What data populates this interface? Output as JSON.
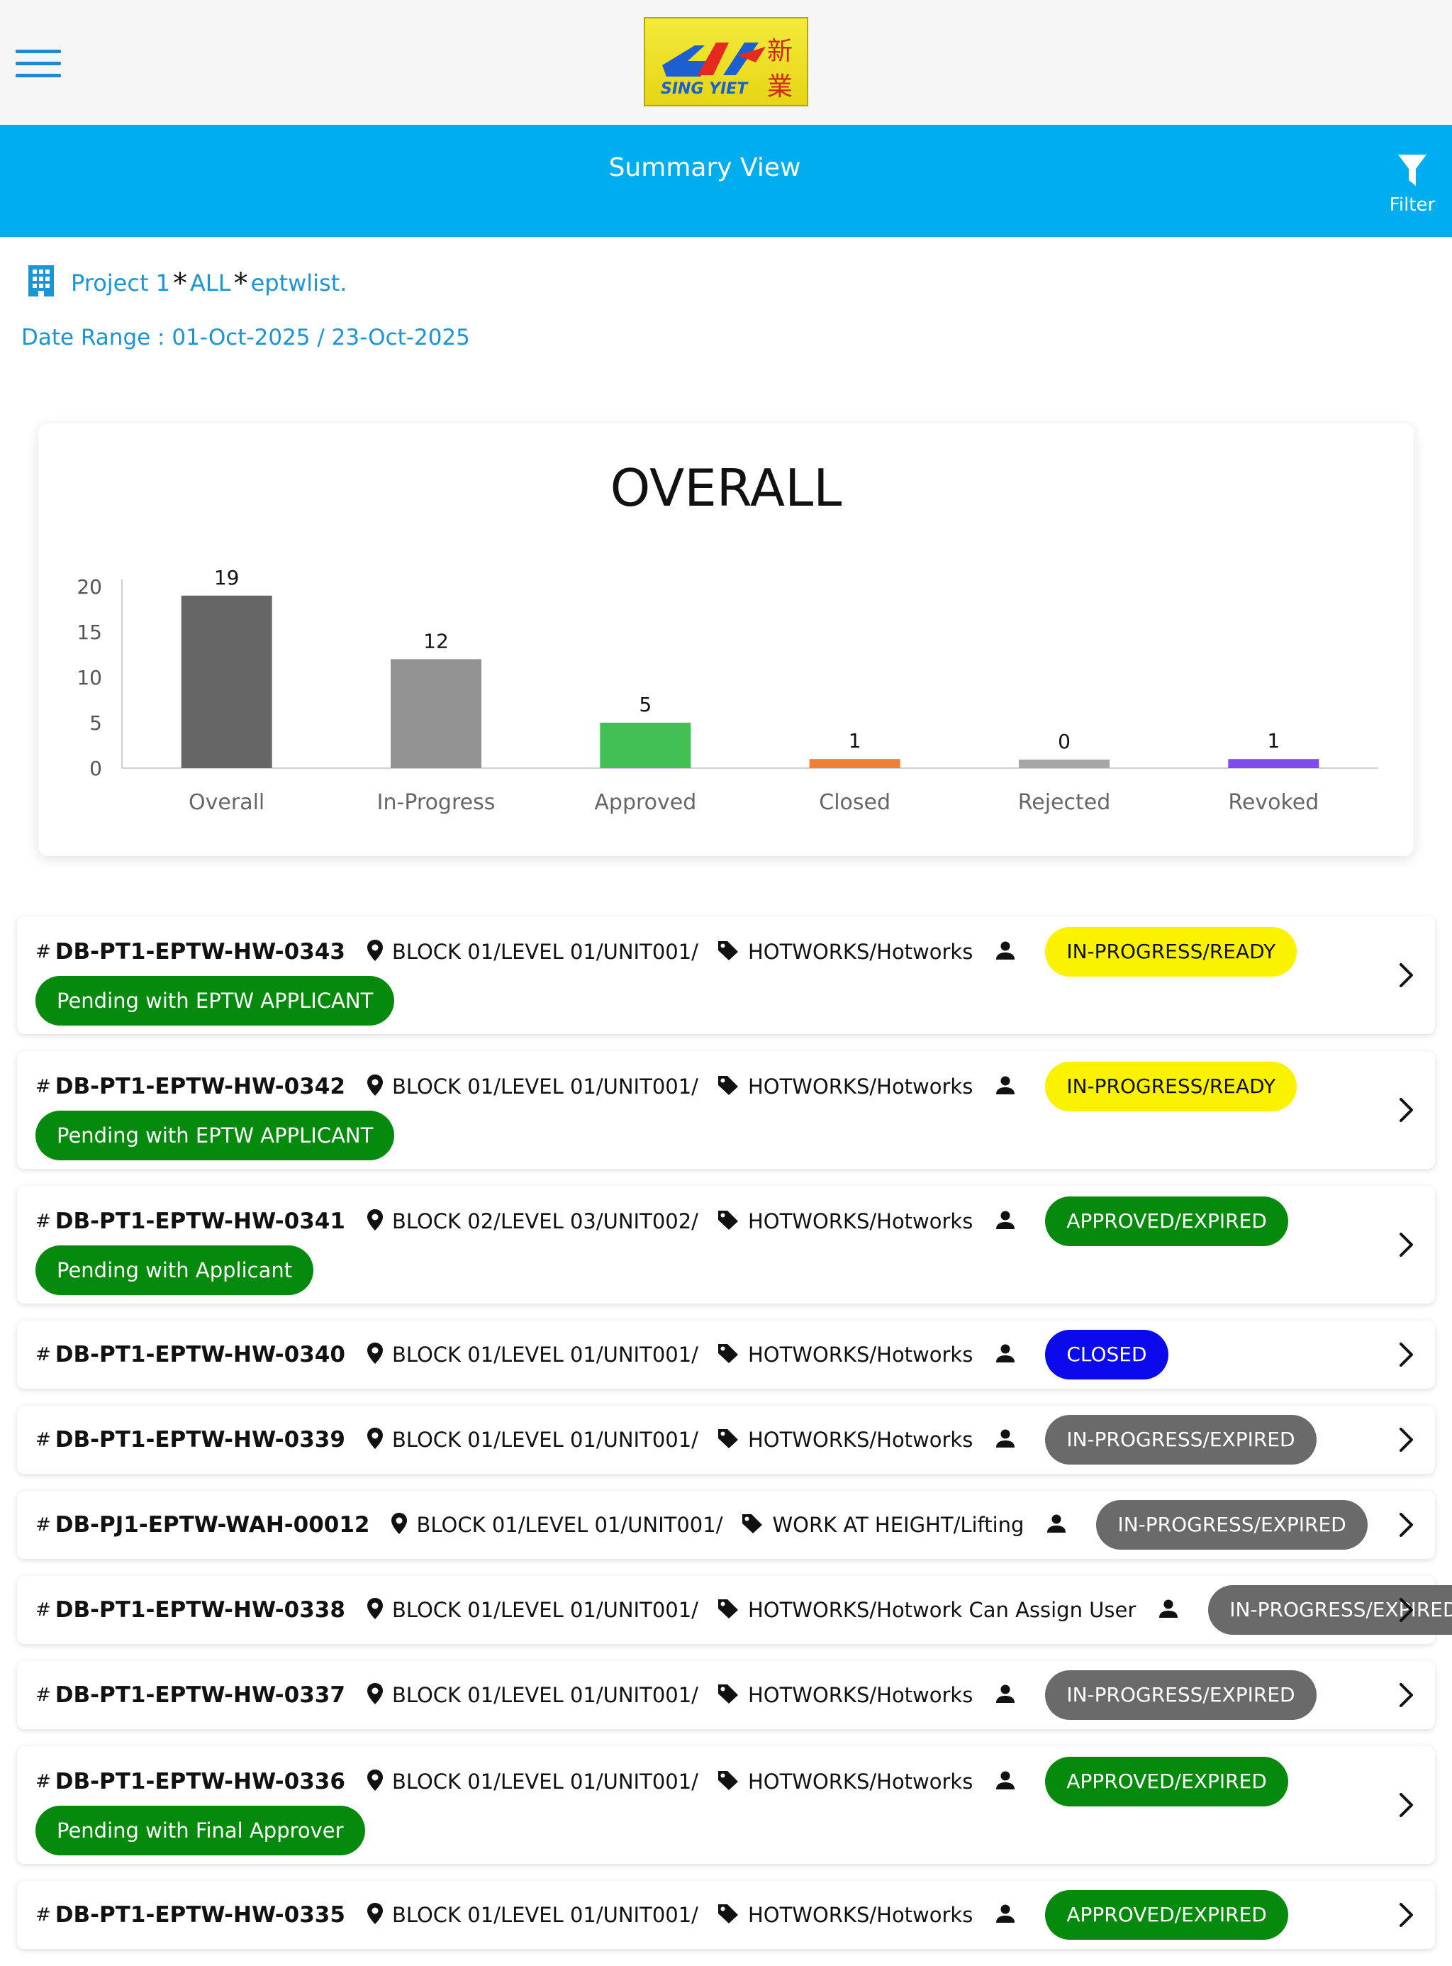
{
  "header": {
    "title": "Summary View",
    "filter_label": "Filter",
    "logo_text": "SING YIET",
    "logo_chinese": "新業"
  },
  "project": {
    "name": "Project 1",
    "scope": "ALL",
    "list": "eptwlist."
  },
  "date_range": {
    "label": "Date Range :",
    "value": "01-Oct-2025 / 23-Oct-2025"
  },
  "chart_data": {
    "type": "bar",
    "title": "OVERALL",
    "categories": [
      "Overall",
      "In-Progress",
      "Approved",
      "Closed",
      "Rejected",
      "Revoked"
    ],
    "values": [
      19,
      12,
      5,
      1,
      0,
      1
    ],
    "colors": [
      "#666666",
      "#939393",
      "#42c054",
      "#f07f34",
      "#a6a6a6",
      "#7e4cf1"
    ],
    "ylim": [
      0,
      20
    ],
    "yticks": [
      0,
      5,
      10,
      15,
      20
    ],
    "grid": false,
    "legend": "none"
  },
  "status_colors": {
    "IN-PROGRESS/READY": {
      "bg": "#fbf200",
      "fg": "#111111"
    },
    "APPROVED/EXPIRED": {
      "bg": "#068a0d",
      "fg": "#ffffff"
    },
    "CLOSED": {
      "bg": "#0a0aea",
      "fg": "#ffffff"
    },
    "IN-PROGRESS/EXPIRED": {
      "bg": "#6a6a6a",
      "fg": "#ffffff"
    }
  },
  "permits": [
    {
      "id": "DB-PT1-EPTW-HW-0343",
      "location": "BLOCK 01/LEVEL 01/UNIT001/",
      "category": "HOTWORKS/Hotworks",
      "status": "IN-PROGRESS/READY",
      "pending": "Pending with EPTW APPLICANT"
    },
    {
      "id": "DB-PT1-EPTW-HW-0342",
      "location": "BLOCK 01/LEVEL 01/UNIT001/",
      "category": "HOTWORKS/Hotworks",
      "status": "IN-PROGRESS/READY",
      "pending": "Pending with EPTW APPLICANT"
    },
    {
      "id": "DB-PT1-EPTW-HW-0341",
      "location": "BLOCK 02/LEVEL 03/UNIT002/",
      "category": "HOTWORKS/Hotworks",
      "status": "APPROVED/EXPIRED",
      "pending": "Pending with Applicant"
    },
    {
      "id": "DB-PT1-EPTW-HW-0340",
      "location": "BLOCK 01/LEVEL 01/UNIT001/",
      "category": "HOTWORKS/Hotworks",
      "status": "CLOSED",
      "pending": ""
    },
    {
      "id": "DB-PT1-EPTW-HW-0339",
      "location": "BLOCK 01/LEVEL 01/UNIT001/",
      "category": "HOTWORKS/Hotworks",
      "status": "IN-PROGRESS/EXPIRED",
      "pending": ""
    },
    {
      "id": "DB-PJ1-EPTW-WAH-00012",
      "location": "BLOCK 01/LEVEL 01/UNIT001/",
      "category": "WORK AT HEIGHT/Lifting",
      "status": "IN-PROGRESS/EXPIRED",
      "pending": ""
    },
    {
      "id": "DB-PT1-EPTW-HW-0338",
      "location": "BLOCK 01/LEVEL 01/UNIT001/",
      "category": "HOTWORKS/Hotwork Can Assign User",
      "status": "IN-PROGRESS/EXPIRED",
      "pending": ""
    },
    {
      "id": "DB-PT1-EPTW-HW-0337",
      "location": "BLOCK 01/LEVEL 01/UNIT001/",
      "category": "HOTWORKS/Hotworks",
      "status": "IN-PROGRESS/EXPIRED",
      "pending": ""
    },
    {
      "id": "DB-PT1-EPTW-HW-0336",
      "location": "BLOCK 01/LEVEL 01/UNIT001/",
      "category": "HOTWORKS/Hotworks",
      "status": "APPROVED/EXPIRED",
      "pending": "Pending with Final Approver"
    },
    {
      "id": "DB-PT1-EPTW-HW-0335",
      "location": "BLOCK 01/LEVEL 01/UNIT001/",
      "category": "HOTWORKS/Hotworks",
      "status": "APPROVED/EXPIRED",
      "pending": ""
    }
  ],
  "icons": {
    "menu": "hamburger-menu-icon",
    "filter": "funnel-icon",
    "building": "building-icon",
    "location": "map-pin-icon",
    "category": "tag-icon",
    "user": "person-icon",
    "chevron": "chevron-right-icon"
  }
}
